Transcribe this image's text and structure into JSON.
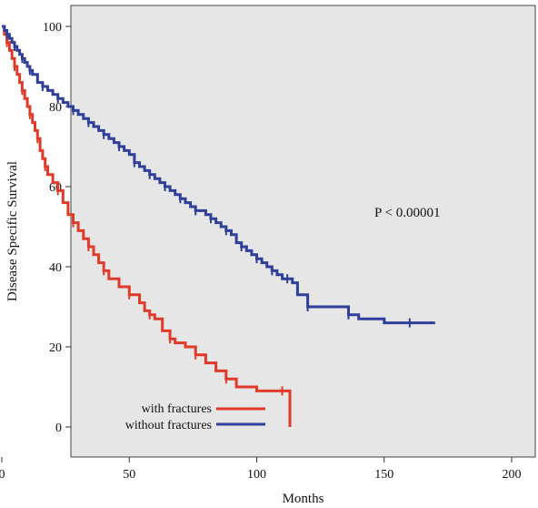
{
  "chart_data": {
    "type": "line",
    "title": "",
    "xlabel": "Months",
    "ylabel": "Disease Specific Survival",
    "xlim": [
      0,
      200
    ],
    "ylim": [
      0,
      100
    ],
    "xticks": [
      0,
      50,
      100,
      150,
      200
    ],
    "yticks": [
      0,
      20,
      40,
      60,
      80,
      100
    ],
    "grid": false,
    "background": "#e6e6e6",
    "legend_placement": "bottom-left",
    "annotation": "P < 0.00001",
    "series": [
      {
        "name": "with fractures",
        "color": "#e03a2a",
        "x": [
          0,
          1,
          2,
          3,
          4,
          5,
          6,
          7,
          8,
          9,
          10,
          11,
          12,
          13,
          14,
          15,
          16,
          17,
          18,
          20,
          22,
          24,
          26,
          28,
          30,
          32,
          34,
          36,
          38,
          40,
          42,
          46,
          50,
          54,
          56,
          58,
          60,
          63,
          66,
          68,
          72,
          76,
          80,
          84,
          88,
          92,
          100,
          110,
          113,
          113
        ],
        "y": [
          100,
          98,
          96,
          94,
          92,
          90,
          88,
          86,
          84,
          82,
          80,
          78,
          76,
          74,
          72,
          69,
          67,
          65,
          63,
          61,
          59,
          56,
          53,
          51,
          49,
          47,
          45,
          43,
          41,
          39,
          37,
          35,
          33,
          31,
          29,
          28,
          27,
          24,
          22,
          21,
          20,
          18,
          16,
          14,
          12,
          10,
          9,
          9,
          9,
          0
        ]
      },
      {
        "name": "without fractures",
        "color": "#2f3f9a",
        "x": [
          0,
          1,
          2,
          3,
          4,
          5,
          6,
          7,
          8,
          9,
          10,
          11,
          12,
          14,
          16,
          18,
          20,
          22,
          24,
          26,
          28,
          30,
          32,
          34,
          36,
          38,
          40,
          42,
          44,
          46,
          48,
          50,
          52,
          54,
          56,
          58,
          60,
          62,
          64,
          66,
          68,
          70,
          72,
          74,
          76,
          78,
          80,
          82,
          84,
          86,
          88,
          90,
          92,
          94,
          96,
          98,
          100,
          102,
          104,
          106,
          108,
          110,
          112,
          114,
          116,
          120,
          124,
          130,
          136,
          140,
          150,
          160,
          170
        ],
        "y": [
          100,
          99,
          98,
          97,
          96,
          95,
          94,
          93,
          92,
          91,
          90,
          89,
          88,
          86,
          85,
          84,
          83,
          82,
          81,
          80,
          79,
          78,
          77,
          76,
          75,
          74,
          73,
          72,
          71,
          70,
          69,
          68,
          66,
          65,
          64,
          63,
          62,
          61,
          60,
          59,
          58,
          57,
          56,
          55,
          54,
          54,
          53,
          52,
          51,
          50,
          49,
          48,
          46,
          45,
          44,
          43,
          42,
          41,
          40,
          39,
          38,
          37,
          37,
          36,
          33,
          30,
          30,
          30,
          28,
          27,
          26,
          26,
          26
        ]
      }
    ]
  }
}
